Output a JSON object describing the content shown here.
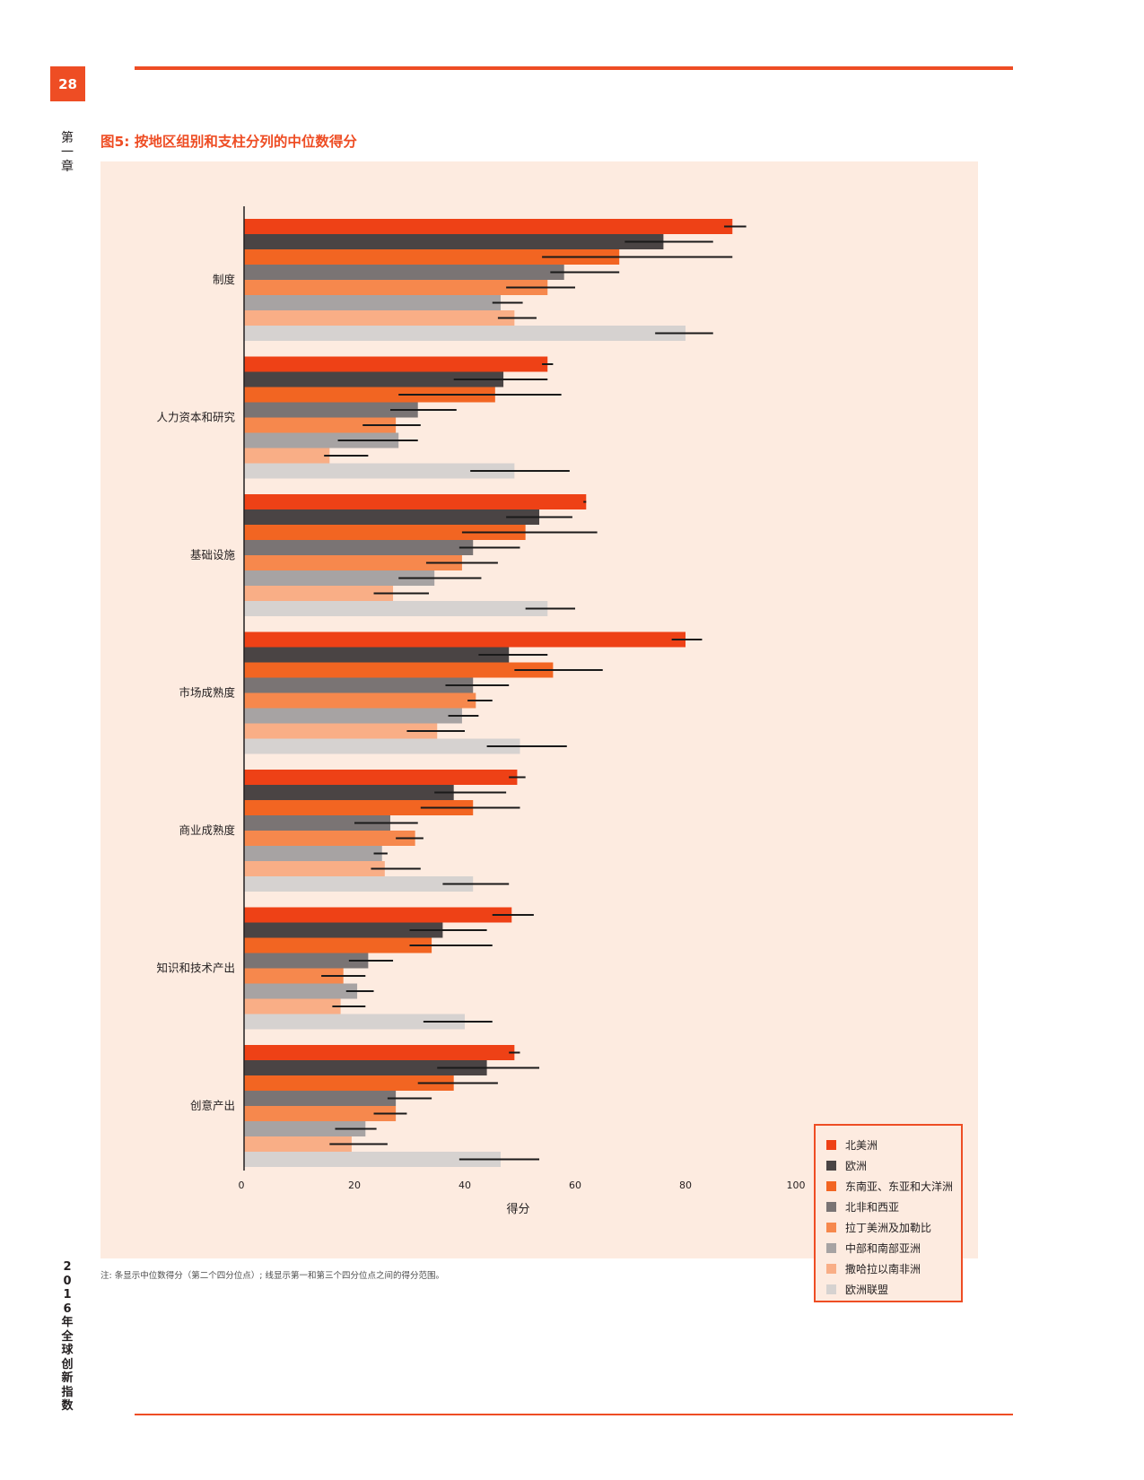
{
  "page": {
    "number": "28",
    "chapter": "第一章",
    "sidebar_title": "2016年全球创新指数"
  },
  "figure": {
    "title": "图5: 按地区组别和支柱分列的中位数得分",
    "note": "注: 条显示中位数得分（第二个四分位点）; 线显示第一和第三个四分位点之间的得分范围。"
  },
  "colors": {
    "accent": "#ee4d24",
    "panel_bg": "#fdebe0",
    "series": [
      "#ee4116",
      "#4a4444",
      "#f26522",
      "#7a7474",
      "#f6884d",
      "#a7a3a3",
      "#f9ae86",
      "#d6d2d0"
    ]
  },
  "chart_data": {
    "type": "bar",
    "orientation": "horizontal",
    "categories": [
      "制度",
      "人力资本和研究",
      "基础设施",
      "市场成熟度",
      "商业成熟度",
      "知识和技术产出",
      "创意产出"
    ],
    "xlabel": "得分",
    "ylabel": "",
    "xlim": [
      0,
      100
    ],
    "xticks": [
      "0",
      "20",
      "40",
      "60",
      "80",
      "100"
    ],
    "grid": false,
    "legend_position": "right",
    "series": [
      {
        "name": "北美洲",
        "values": [
          88.5,
          55,
          62,
          80,
          49.5,
          48.5,
          49
        ],
        "q1": [
          87,
          54,
          61.5,
          77.5,
          48,
          45,
          48
        ],
        "q3": [
          91,
          56,
          62,
          83,
          51,
          52.5,
          50
        ]
      },
      {
        "name": "欧洲",
        "values": [
          76,
          47,
          53.5,
          48,
          38,
          36,
          44
        ],
        "q1": [
          69,
          38,
          47.5,
          42.5,
          34.5,
          30,
          35
        ],
        "q3": [
          85,
          55,
          59.5,
          55,
          47.5,
          44,
          53.5
        ]
      },
      {
        "name": "东南亚、东亚和大洋洲",
        "values": [
          68,
          45.5,
          51,
          56,
          41.5,
          34,
          38
        ],
        "q1": [
          54,
          28,
          39.5,
          49,
          32,
          30,
          31.5
        ],
        "q3": [
          88.5,
          57.5,
          64,
          65,
          50,
          45,
          46
        ]
      },
      {
        "name": "北非和西亚",
        "values": [
          58,
          31.5,
          41.5,
          41.5,
          26.5,
          22.5,
          27.5
        ],
        "q1": [
          55.5,
          26.5,
          39,
          36.5,
          20,
          19,
          26
        ],
        "q3": [
          68,
          38.5,
          50,
          48,
          31.5,
          27,
          34
        ]
      },
      {
        "name": "拉丁美洲及加勒比",
        "values": [
          55,
          27.5,
          39.5,
          42,
          31,
          18,
          27.5
        ],
        "q1": [
          47.5,
          21.5,
          33,
          40.5,
          27.5,
          14,
          23.5
        ],
        "q3": [
          60,
          32,
          46,
          45,
          32.5,
          22,
          29.5
        ]
      },
      {
        "name": "中部和南部亚洲",
        "values": [
          46.5,
          28,
          34.5,
          39.5,
          25,
          20.5,
          22
        ],
        "q1": [
          45,
          17,
          28,
          37,
          23.5,
          18.5,
          16.5
        ],
        "q3": [
          50.5,
          31.5,
          43,
          42.5,
          26,
          23.5,
          24
        ]
      },
      {
        "name": "撒哈拉以南非洲",
        "values": [
          49,
          15.5,
          27,
          35,
          25.5,
          17.5,
          19.5
        ],
        "q1": [
          46,
          14.5,
          23.5,
          29.5,
          23,
          16,
          15.5
        ],
        "q3": [
          53,
          22.5,
          33.5,
          40,
          32,
          22,
          26
        ]
      },
      {
        "name": "欧洲联盟",
        "values": [
          80,
          49,
          55,
          50,
          41.5,
          40,
          46.5
        ],
        "q1": [
          74.5,
          41,
          51,
          44,
          36,
          32.5,
          39
        ],
        "q3": [
          85,
          59,
          60,
          58.5,
          48,
          45,
          53.5
        ]
      }
    ]
  }
}
